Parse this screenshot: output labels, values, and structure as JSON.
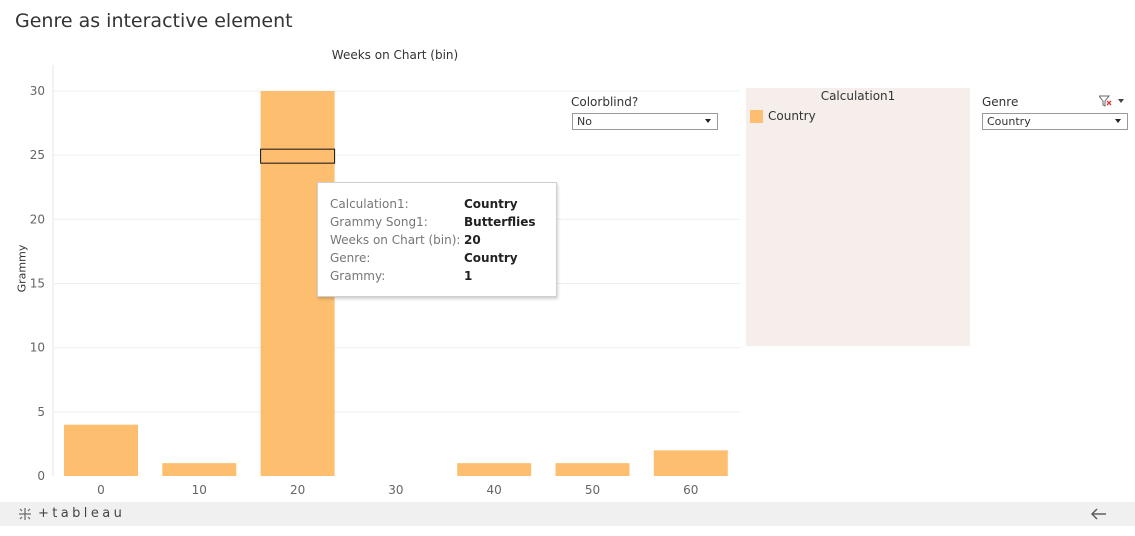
{
  "title": "Genre as interactive element",
  "colorblind": {
    "label": "Colorblind?",
    "value": "No"
  },
  "legend": {
    "title": "Calculation1",
    "items": [
      {
        "label": "Country",
        "color": "#fdbf6f"
      }
    ]
  },
  "genre_filter": {
    "label": "Genre",
    "value": "Country"
  },
  "tooltip": {
    "rows": [
      {
        "key": "Calculation1:",
        "value": "Country"
      },
      {
        "key": "Grammy Song1:",
        "value": "Butterflies"
      },
      {
        "key": "Weeks on Chart (bin):",
        "value": "20"
      },
      {
        "key": "Genre:",
        "value": "Country"
      },
      {
        "key": "Grammy:",
        "value": "1"
      }
    ]
  },
  "footer": {
    "brand": "+tableau"
  },
  "chart_data": {
    "type": "bar",
    "xlabel": "Weeks on Chart (bin)",
    "ylabel": "Grammy",
    "categories": [
      "0",
      "10",
      "20",
      "30",
      "40",
      "50",
      "60"
    ],
    "series": [
      {
        "name": "Country",
        "values": [
          4,
          1,
          30,
          0,
          1,
          1,
          2
        ],
        "color": "#fdbf6f"
      }
    ],
    "ylim": [
      0,
      30
    ],
    "yticks": [
      0,
      5,
      10,
      15,
      20,
      25,
      30
    ],
    "highlight": {
      "category": "20",
      "value": 25
    },
    "grid": true
  }
}
